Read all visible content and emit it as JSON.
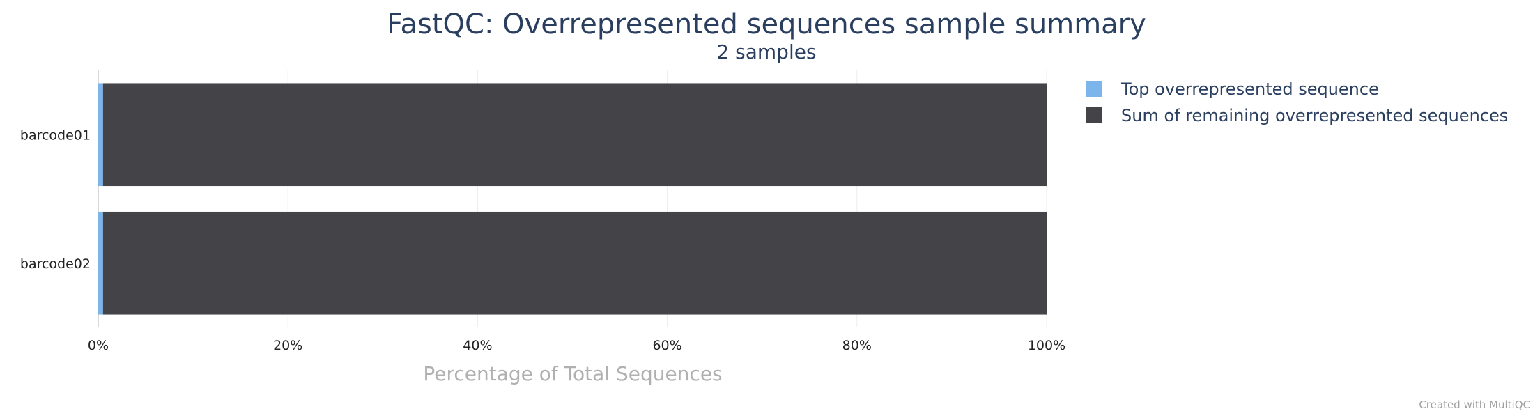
{
  "chart_data": {
    "type": "bar",
    "orientation": "horizontal",
    "stacked": true,
    "title": "FastQC: Overrepresented sequences sample summary",
    "subtitle": "2 samples",
    "xlabel": "Percentage of Total Sequences",
    "ylabel": "",
    "xlim": [
      0,
      100
    ],
    "x_ticks": [
      "0%",
      "20%",
      "40%",
      "60%",
      "80%",
      "100%"
    ],
    "grid": true,
    "legend_position": "top-right",
    "categories": [
      "barcode01",
      "barcode02"
    ],
    "series": [
      {
        "name": "Top overrepresented sequence",
        "color": "#7cb5ec",
        "values": [
          0.5,
          0.5
        ]
      },
      {
        "name": "Sum of remaining overrepresented sequences",
        "color": "#434348",
        "values": [
          99.5,
          99.5
        ]
      }
    ]
  },
  "footer": {
    "credit": "Created with MultiQC"
  },
  "colors": {
    "title": "#2a3f5f",
    "axis_label": "#b0b0b0",
    "credit": "#a0a0a0"
  }
}
